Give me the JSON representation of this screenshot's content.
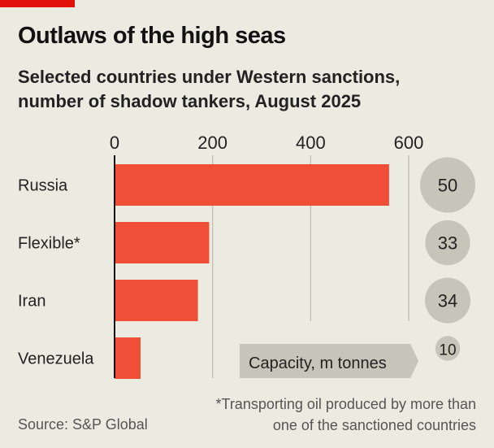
{
  "title": "Outlaws of the high seas",
  "subtitle_line1": "Selected countries under Western sanctions,",
  "subtitle_line2": "number of shadow tankers, August 2025",
  "source": "Source: S&P Global",
  "footnote": "*Transporting oil produced by more than one of the sanctioned countries",
  "colors": {
    "bar": "#f04e37",
    "bubble": "#c6c5b9",
    "accent": "#e3120b"
  },
  "chart_data": {
    "type": "bar",
    "orientation": "horizontal",
    "categories": [
      "Russia",
      "Flexible*",
      "Iran",
      "Venezuela"
    ],
    "values": [
      560,
      193,
      170,
      53
    ],
    "xlim": [
      0,
      600
    ],
    "xticks": [
      "0",
      "200",
      "400",
      "600"
    ],
    "capacity_label": "Capacity, m tonnes",
    "capacity": [
      "50",
      "33",
      "34",
      "10"
    ],
    "capacity_values": [
      50,
      33,
      34,
      10
    ]
  }
}
